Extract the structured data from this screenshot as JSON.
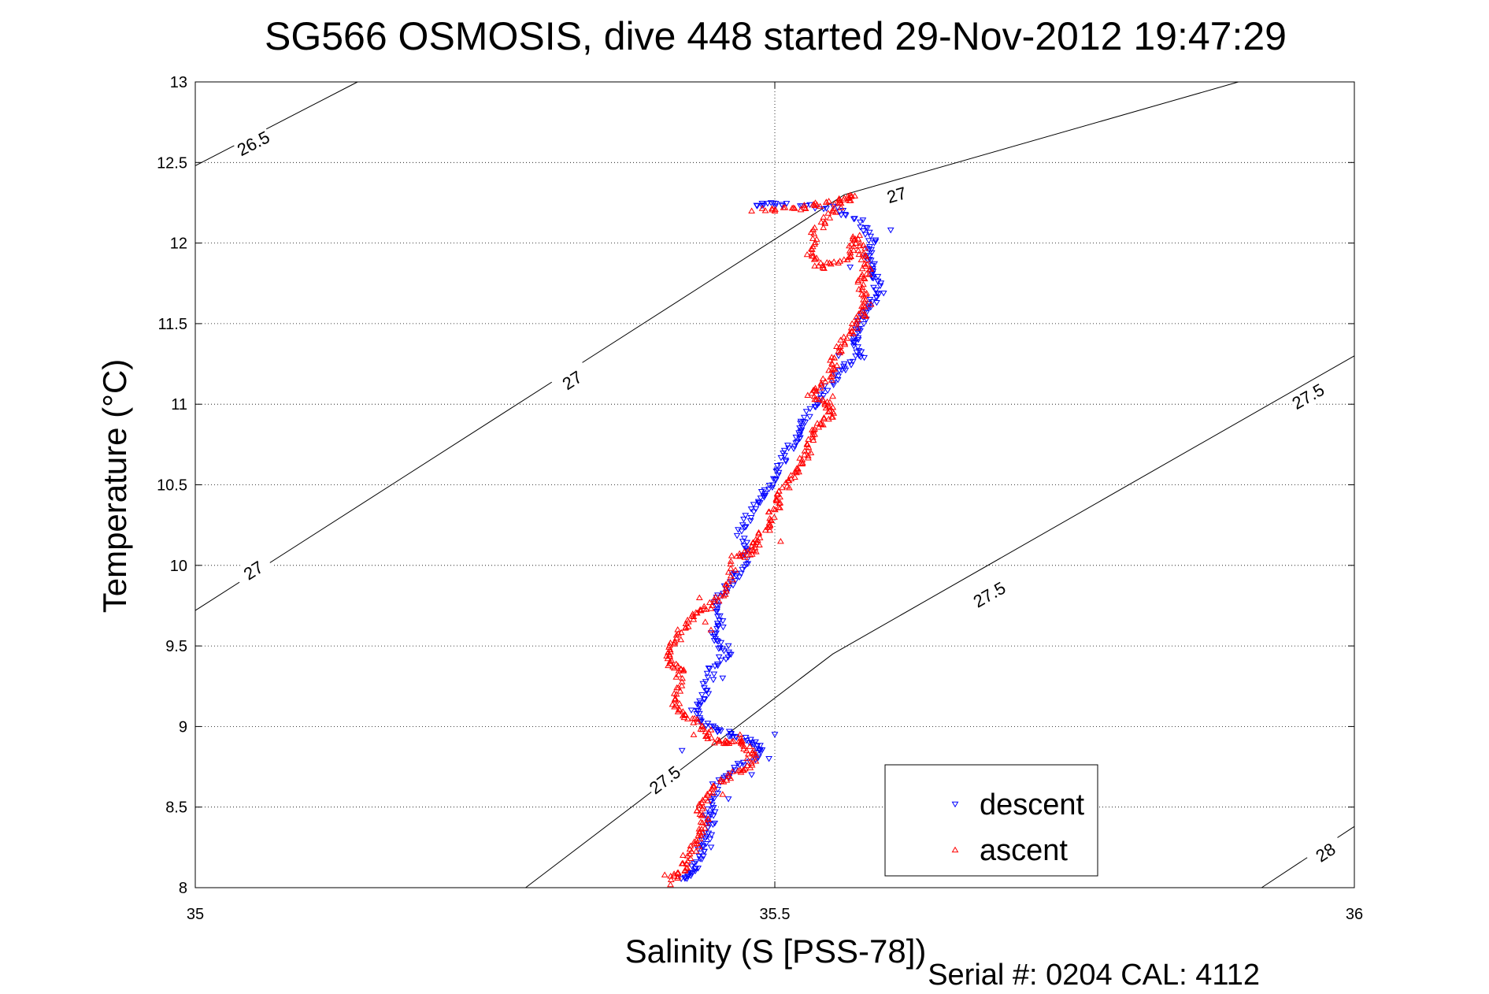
{
  "chart_data": {
    "type": "scatter",
    "title": "SG566 OSMOSIS, dive 448 started 29-Nov-2012 19:47:29",
    "xlabel": "Salinity (S [PSS-78])",
    "ylabel": "Temperature (°C)",
    "xlim": [
      35,
      36
    ],
    "ylim": [
      8,
      13
    ],
    "xticks": [
      35,
      35.5,
      36
    ],
    "xtick_labels": [
      "35",
      "35.5",
      "36"
    ],
    "yticks": [
      8,
      8.5,
      9,
      9.5,
      10,
      10.5,
      11,
      11.5,
      12,
      12.5,
      13
    ],
    "ytick_labels": [
      "8",
      "8.5",
      "9",
      "9.5",
      "10",
      "10.5",
      "11",
      "11.5",
      "12",
      "12.5",
      "13"
    ],
    "grid": true,
    "legend": "bottom-right",
    "footer": "Serial #: 0204  CAL: 4112",
    "contours": [
      {
        "level": "26.5",
        "points": [
          [
            35,
            12.48
          ],
          [
            35.14,
            13
          ]
        ],
        "labels": [
          {
            "x": 35.05,
            "y": 12.62
          }
        ]
      },
      {
        "level": "27",
        "points": [
          [
            35,
            9.72
          ],
          [
            35.56,
            12.3
          ],
          [
            35.9,
            13
          ]
        ],
        "labels": [
          {
            "x": 35.05,
            "y": 9.97
          },
          {
            "x": 35.325,
            "y": 11.15
          },
          {
            "x": 35.605,
            "y": 12.3
          }
        ]
      },
      {
        "level": "27.5",
        "points": [
          [
            35.285,
            8
          ],
          [
            35.55,
            9.45
          ],
          [
            36,
            11.3
          ]
        ],
        "labels": [
          {
            "x": 35.405,
            "y": 8.67
          },
          {
            "x": 35.685,
            "y": 9.82
          },
          {
            "x": 35.96,
            "y": 11.05
          }
        ]
      },
      {
        "level": "28",
        "points": [
          [
            35.92,
            8
          ],
          [
            36,
            8.38
          ]
        ],
        "labels": [
          {
            "x": 35.975,
            "y": 8.22
          }
        ]
      }
    ],
    "series": [
      {
        "name": "descent",
        "color": "#0000ff",
        "marker": "triangle-down",
        "path": [
          [
            35.485,
            12.24
          ],
          [
            35.505,
            12.24
          ],
          [
            35.55,
            12.22
          ],
          [
            35.575,
            12.12
          ],
          [
            35.585,
            12.0
          ],
          [
            35.58,
            11.9
          ],
          [
            35.585,
            11.8
          ],
          [
            35.59,
            11.7
          ],
          [
            35.58,
            11.6
          ],
          [
            35.575,
            11.5
          ],
          [
            35.57,
            11.4
          ],
          [
            35.575,
            11.3
          ],
          [
            35.555,
            11.2
          ],
          [
            35.54,
            11.05
          ],
          [
            35.525,
            10.9
          ],
          [
            35.52,
            10.8
          ],
          [
            35.51,
            10.7
          ],
          [
            35.5,
            10.55
          ],
          [
            35.49,
            10.45
          ],
          [
            35.48,
            10.35
          ],
          [
            35.47,
            10.2
          ],
          [
            35.475,
            10.05
          ],
          [
            35.465,
            9.9
          ],
          [
            35.45,
            9.8
          ],
          [
            35.455,
            9.65
          ],
          [
            35.445,
            9.55
          ],
          [
            35.46,
            9.45
          ],
          [
            35.445,
            9.35
          ],
          [
            35.44,
            9.2
          ],
          [
            35.43,
            9.1
          ],
          [
            35.445,
            9.0
          ],
          [
            35.46,
            8.95
          ],
          [
            35.48,
            8.9
          ],
          [
            35.49,
            8.85
          ],
          [
            35.47,
            8.75
          ],
          [
            35.45,
            8.65
          ],
          [
            35.445,
            8.5
          ],
          [
            35.445,
            8.4
          ],
          [
            35.44,
            8.3
          ],
          [
            35.435,
            8.2
          ],
          [
            35.43,
            8.1
          ],
          [
            35.42,
            8.05
          ]
        ],
        "extra": [
          [
            35.6,
            12.08
          ],
          [
            35.565,
            11.85
          ],
          [
            35.555,
            11.3
          ],
          [
            35.56,
            11.25
          ],
          [
            35.455,
            9.3
          ],
          [
            35.46,
            9.5
          ],
          [
            35.45,
            9.75
          ],
          [
            35.465,
            9.95
          ],
          [
            35.42,
            8.85
          ],
          [
            35.5,
            8.95
          ],
          [
            35.495,
            8.8
          ],
          [
            35.48,
            8.7
          ],
          [
            35.46,
            8.55
          ],
          [
            35.44,
            8.45
          ],
          [
            35.445,
            8.25
          ],
          [
            35.425,
            8.08
          ]
        ]
      },
      {
        "name": "ascent",
        "color": "#ff0000",
        "marker": "triangle-up",
        "path": [
          [
            35.49,
            12.21
          ],
          [
            35.52,
            12.22
          ],
          [
            35.55,
            12.25
          ],
          [
            35.57,
            12.3
          ],
          [
            35.55,
            12.2
          ],
          [
            35.535,
            12.08
          ],
          [
            35.53,
            11.95
          ],
          [
            35.54,
            11.85
          ],
          [
            35.565,
            11.9
          ],
          [
            35.57,
            12.05
          ],
          [
            35.575,
            11.95
          ],
          [
            35.58,
            11.85
          ],
          [
            35.575,
            11.75
          ],
          [
            35.58,
            11.65
          ],
          [
            35.575,
            11.55
          ],
          [
            35.565,
            11.45
          ],
          [
            35.555,
            11.35
          ],
          [
            35.55,
            11.25
          ],
          [
            35.545,
            11.15
          ],
          [
            35.53,
            11.05
          ],
          [
            35.545,
            11.0
          ],
          [
            35.55,
            10.93
          ],
          [
            35.535,
            10.85
          ],
          [
            35.53,
            10.75
          ],
          [
            35.525,
            10.65
          ],
          [
            35.515,
            10.55
          ],
          [
            35.505,
            10.45
          ],
          [
            35.5,
            10.35
          ],
          [
            35.495,
            10.25
          ],
          [
            35.485,
            10.15
          ],
          [
            35.48,
            10.08
          ],
          [
            35.465,
            10.05
          ],
          [
            35.46,
            9.85
          ],
          [
            35.445,
            9.75
          ],
          [
            35.43,
            9.7
          ],
          [
            35.42,
            9.6
          ],
          [
            35.41,
            9.5
          ],
          [
            35.41,
            9.4
          ],
          [
            35.42,
            9.35
          ],
          [
            35.415,
            9.2
          ],
          [
            35.415,
            9.1
          ],
          [
            35.43,
            9.05
          ],
          [
            35.44,
            8.95
          ],
          [
            35.455,
            8.9
          ],
          [
            35.47,
            8.92
          ],
          [
            35.48,
            8.85
          ],
          [
            35.48,
            8.75
          ],
          [
            35.46,
            8.7
          ],
          [
            35.445,
            8.6
          ],
          [
            35.435,
            8.5
          ],
          [
            35.44,
            8.4
          ],
          [
            35.435,
            8.3
          ],
          [
            35.425,
            8.2
          ],
          [
            35.42,
            8.1
          ],
          [
            35.41,
            8.05
          ]
        ],
        "extra": [
          [
            35.48,
            12.2
          ],
          [
            35.535,
            12.25
          ],
          [
            35.56,
            12.28
          ],
          [
            35.565,
            11.92
          ],
          [
            35.545,
            11.88
          ],
          [
            35.57,
            12.0
          ],
          [
            35.535,
            11.1
          ],
          [
            35.55,
            11.05
          ],
          [
            35.52,
            10.6
          ],
          [
            35.505,
            10.15
          ],
          [
            35.48,
            10.12
          ],
          [
            35.46,
            9.9
          ],
          [
            35.44,
            9.65
          ],
          [
            35.445,
            9.6
          ],
          [
            35.435,
            9.8
          ],
          [
            35.43,
            8.95
          ],
          [
            35.445,
            8.98
          ],
          [
            35.47,
            8.95
          ],
          [
            35.455,
            8.58
          ],
          [
            35.435,
            8.35
          ],
          [
            35.42,
            8.15
          ],
          [
            35.405,
            8.08
          ],
          [
            35.41,
            8.02
          ],
          [
            35.5,
            12.2
          ]
        ]
      }
    ]
  }
}
